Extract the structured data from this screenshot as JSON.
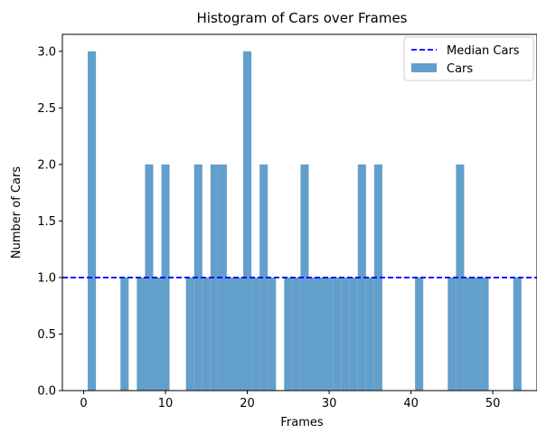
{
  "chart_data": {
    "type": "bar",
    "title": "Histogram of Cars over Frames",
    "xlabel": "Frames",
    "ylabel": "Number of Cars",
    "xlim": [
      -2.6,
      55.4
    ],
    "ylim": [
      0,
      3.15
    ],
    "xticks": [
      0,
      10,
      20,
      30,
      40,
      50
    ],
    "yticks": [
      "0.0",
      "0.5",
      "1.0",
      "1.5",
      "2.0",
      "2.5",
      "3.0"
    ],
    "bar_width": 1,
    "bars": [
      {
        "x": 1,
        "y": 3
      },
      {
        "x": 5,
        "y": 1
      },
      {
        "x": 7,
        "y": 1
      },
      {
        "x": 8,
        "y": 2
      },
      {
        "x": 9,
        "y": 1
      },
      {
        "x": 10,
        "y": 2
      },
      {
        "x": 13,
        "y": 1
      },
      {
        "x": 14,
        "y": 2
      },
      {
        "x": 15,
        "y": 1
      },
      {
        "x": 16,
        "y": 2
      },
      {
        "x": 17,
        "y": 2
      },
      {
        "x": 18,
        "y": 1
      },
      {
        "x": 19,
        "y": 1
      },
      {
        "x": 20,
        "y": 3
      },
      {
        "x": 21,
        "y": 1
      },
      {
        "x": 22,
        "y": 2
      },
      {
        "x": 23,
        "y": 1
      },
      {
        "x": 25,
        "y": 1
      },
      {
        "x": 26,
        "y": 1
      },
      {
        "x": 27,
        "y": 2
      },
      {
        "x": 28,
        "y": 1
      },
      {
        "x": 29,
        "y": 1
      },
      {
        "x": 30,
        "y": 1
      },
      {
        "x": 31,
        "y": 1
      },
      {
        "x": 32,
        "y": 1
      },
      {
        "x": 33,
        "y": 1
      },
      {
        "x": 34,
        "y": 2
      },
      {
        "x": 35,
        "y": 1
      },
      {
        "x": 36,
        "y": 2
      },
      {
        "x": 41,
        "y": 1
      },
      {
        "x": 45,
        "y": 1
      },
      {
        "x": 46,
        "y": 2
      },
      {
        "x": 47,
        "y": 1
      },
      {
        "x": 48,
        "y": 1
      },
      {
        "x": 49,
        "y": 1
      },
      {
        "x": 53,
        "y": 1
      }
    ],
    "median": 1.0,
    "legend": {
      "position": "top-right",
      "entries": [
        {
          "label": "Median Cars",
          "kind": "dashed-line"
        },
        {
          "label": "Cars",
          "kind": "bar"
        }
      ]
    },
    "colors": {
      "bar": "#629fca",
      "median": "#0000ff",
      "axis": "#000000"
    }
  }
}
